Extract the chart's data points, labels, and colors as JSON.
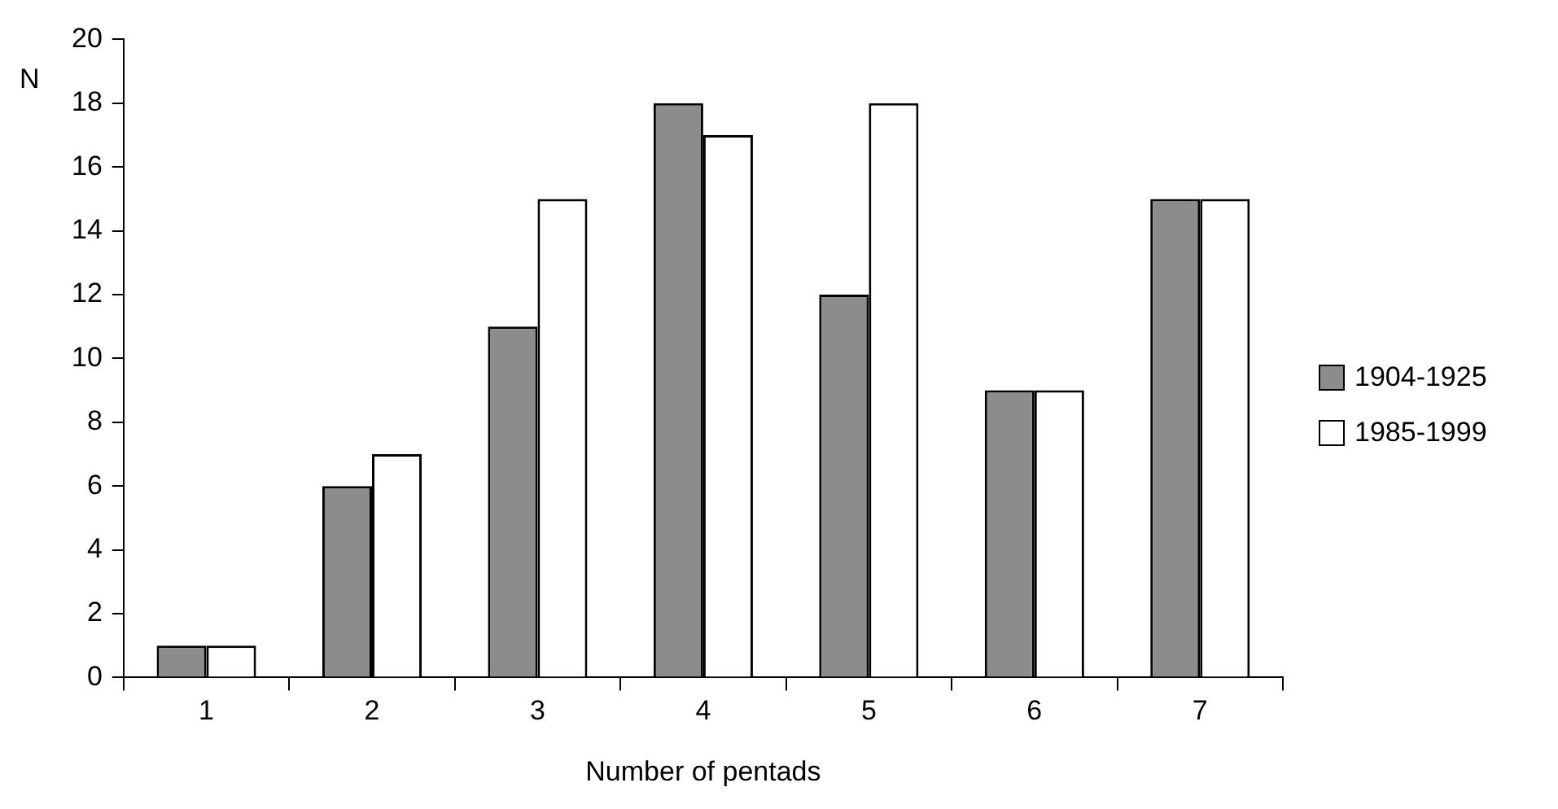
{
  "chart_data": {
    "type": "bar",
    "xlabel": "Number of pentads",
    "ylabel": "N",
    "categories": [
      "1",
      "2",
      "3",
      "4",
      "5",
      "6",
      "7"
    ],
    "series": [
      {
        "name": "1904-1925",
        "color": "#8c8c8c",
        "values": [
          1,
          6,
          11,
          18,
          12,
          9,
          15
        ]
      },
      {
        "name": "1985-1999",
        "color": "#ffffff",
        "values": [
          1,
          7,
          15,
          17,
          18,
          9,
          15
        ]
      }
    ],
    "ylim": [
      0,
      20
    ],
    "yticks": [
      0,
      2,
      4,
      6,
      8,
      10,
      12,
      14,
      16,
      18,
      20
    ],
    "grid": false,
    "legend": "right"
  }
}
